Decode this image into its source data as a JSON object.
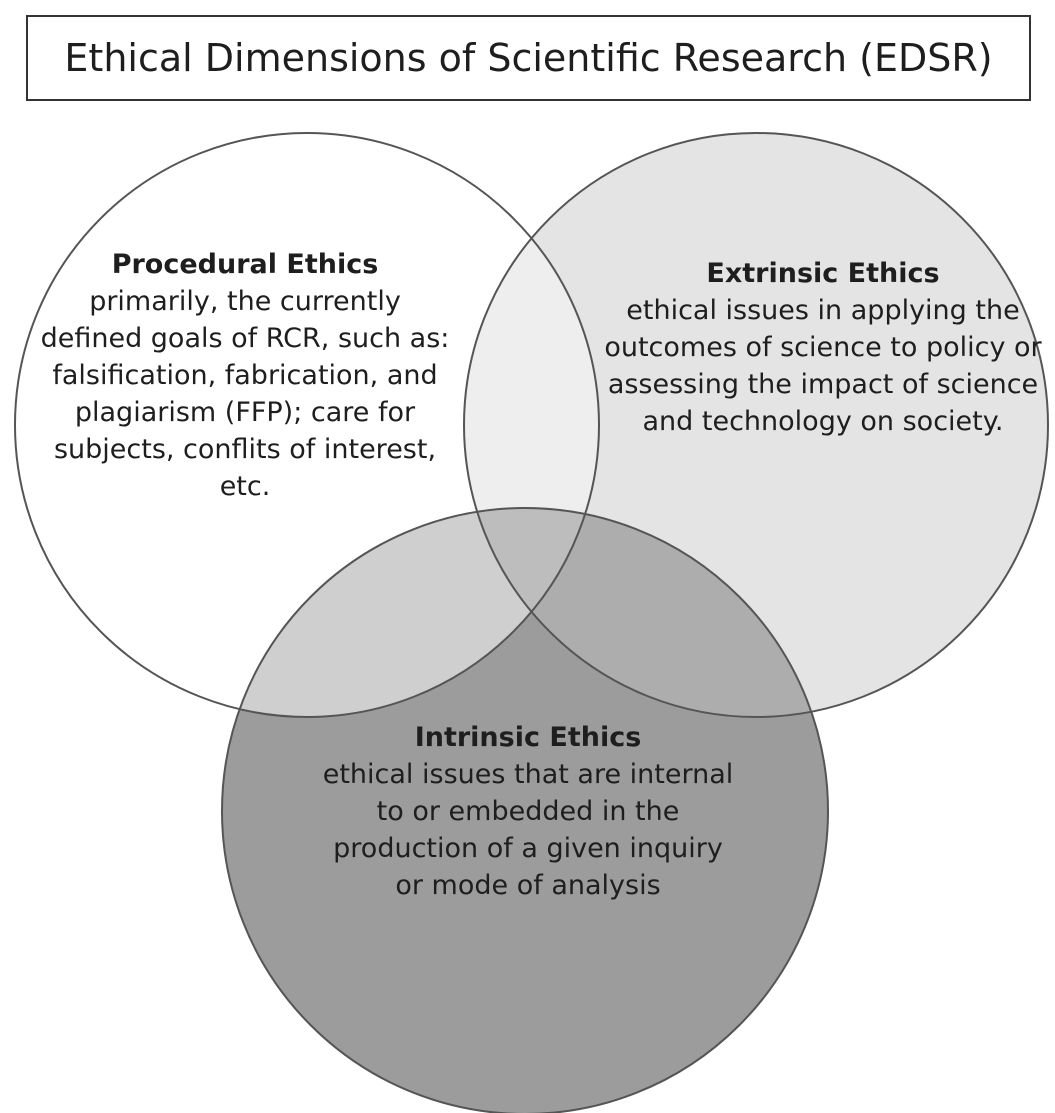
{
  "title": "Ethical Dimensions of Scientific Research (EDSR)",
  "circles": [
    {
      "id": "procedural",
      "heading": "Procedural Ethics",
      "description": "primarily, the currently defined goals of RCR, such as: falsification, fabrication, and plagiarism (FFP); care for subjects, conflits of interest, etc.",
      "fill": "#ffffff"
    },
    {
      "id": "extrinsic",
      "heading": "Extrinsic Ethics",
      "description": "ethical issues in applying the outcomes of science to policy or assessing the impact of science and technology on society.",
      "fill": "#e2e2e2"
    },
    {
      "id": "intrinsic",
      "heading": "Intrinsic Ethics",
      "description": "ethical issues that are internal to or embedded in the production of a given inquiry or mode of analysis",
      "fill": "#9a9a9a"
    }
  ],
  "colors": {
    "outline": "#555555",
    "text": "#1e1e1e",
    "title_border": "#333333"
  }
}
